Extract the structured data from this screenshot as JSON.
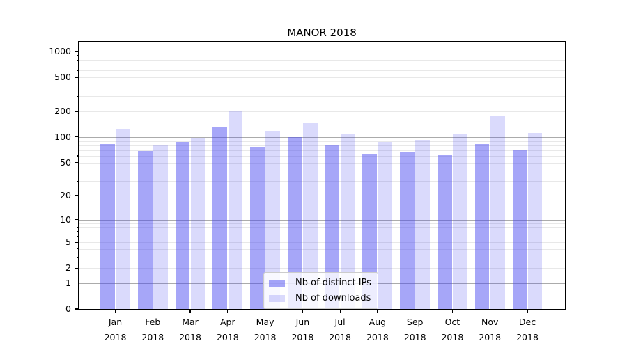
{
  "title": "MANOR 2018",
  "chart_data": {
    "type": "bar",
    "title": "MANOR 2018",
    "categories": [
      "Jan 2018",
      "Feb 2018",
      "Mar 2018",
      "Apr 2018",
      "May 2018",
      "Jun 2018",
      "Jul 2018",
      "Aug 2018",
      "Sep 2018",
      "Oct 2018",
      "Nov 2018",
      "Dec 2018"
    ],
    "series": [
      {
        "name": "Nb of distinct IPs",
        "color": "rgba(70,70,240,0.48)",
        "values": [
          83,
          69,
          87,
          132,
          77,
          100,
          81,
          63,
          66,
          61,
          82,
          70
        ]
      },
      {
        "name": "Nb of downloads",
        "color": "rgba(70,70,240,0.20)",
        "values": [
          123,
          80,
          98,
          204,
          118,
          146,
          108,
          88,
          93,
          107,
          176,
          112
        ]
      }
    ],
    "yscale": "log1p",
    "ylim": [
      0,
      1216
    ],
    "y_ticks": [
      0,
      1,
      2,
      5,
      10,
      20,
      50,
      100,
      200,
      500,
      1000
    ],
    "y_major_gridlines": [
      1,
      10,
      100,
      1000
    ],
    "y_minor_gridlines": [
      2,
      3,
      4,
      5,
      6,
      7,
      8,
      9,
      20,
      30,
      40,
      50,
      60,
      70,
      80,
      90,
      200,
      300,
      400,
      500,
      600,
      700,
      800,
      900
    ],
    "grid": true,
    "legend_position": "lower center",
    "colors": {
      "bar_ips_hex": "#a6a6f7",
      "bar_downloads_hex": "#dadafc",
      "grid_major": "#ababab",
      "grid_minor": "#e8e8e8",
      "axis": "#000000",
      "text": "#000000",
      "legend_border": "#cccccc",
      "background": "#ffffff"
    }
  }
}
